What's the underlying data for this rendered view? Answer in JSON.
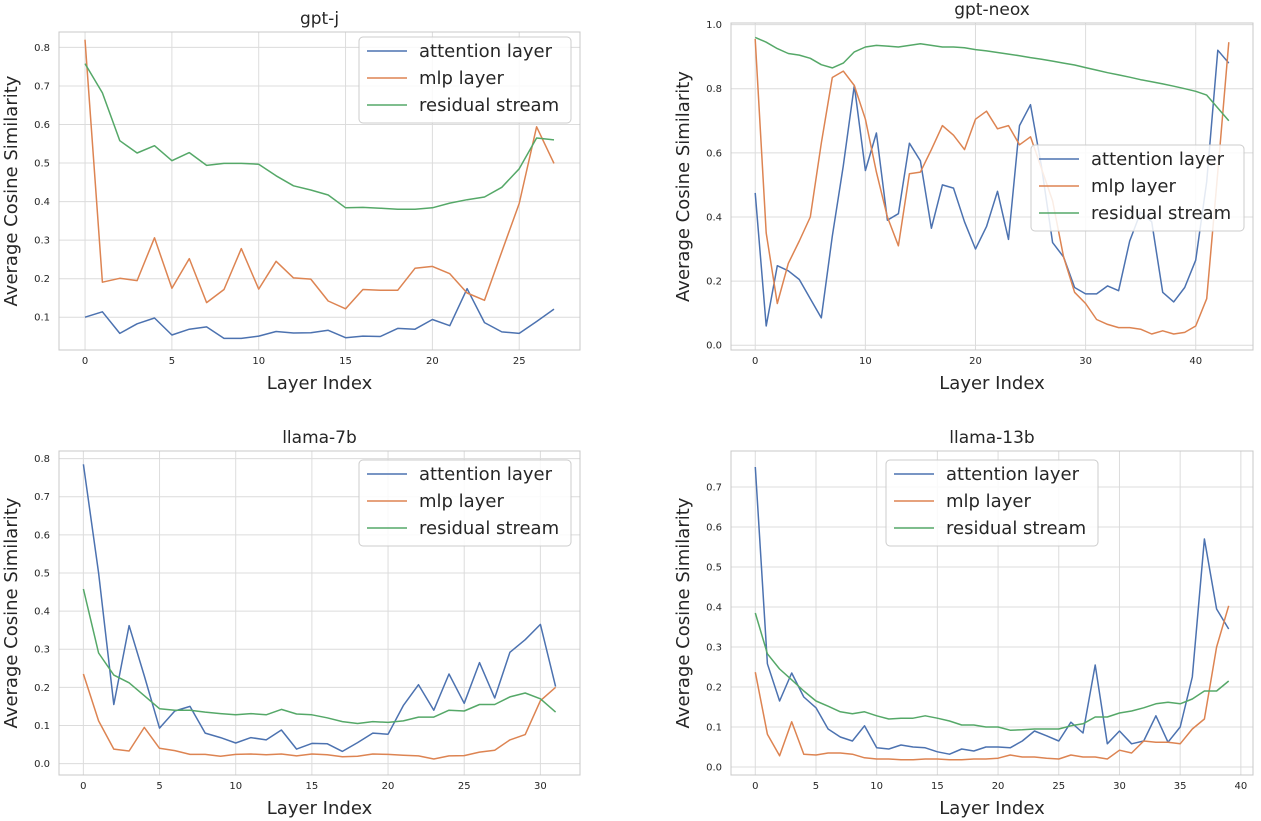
{
  "figure": {
    "legend_labels": [
      "attention layer",
      "mlp layer",
      "residual stream"
    ]
  },
  "colors": {
    "attention": "#4c72b0",
    "mlp": "#dd8452",
    "residual": "#55a868",
    "plot_bg": "#ffffff",
    "grid": "#dcdcdc",
    "spine": "#c8c8c8",
    "text": "#262626"
  },
  "chart_data": [
    {
      "type": "line",
      "title": "gpt-j",
      "xlabel": "Layer Index",
      "ylabel": "Average Cosine Similarity",
      "xlim": [
        -1.5,
        28.5
      ],
      "ylim": [
        0.015,
        0.84
      ],
      "xticks": [
        0,
        5,
        10,
        15,
        20,
        25
      ],
      "yticks": [
        0.1,
        0.2,
        0.3,
        0.4,
        0.5,
        0.6,
        0.7,
        0.8
      ],
      "legend": "top-right",
      "grid": true,
      "x": [
        0,
        1,
        2,
        3,
        4,
        5,
        6,
        7,
        8,
        9,
        10,
        11,
        12,
        13,
        14,
        15,
        16,
        17,
        18,
        19,
        20,
        21,
        22,
        23,
        24,
        25,
        26,
        27
      ],
      "series": [
        {
          "name": "attention layer",
          "values": [
            0.1,
            0.114,
            0.058,
            0.083,
            0.098,
            0.054,
            0.069,
            0.075,
            0.045,
            0.045,
            0.051,
            0.063,
            0.059,
            0.06,
            0.066,
            0.047,
            0.051,
            0.05,
            0.071,
            0.069,
            0.094,
            0.078,
            0.174,
            0.086,
            0.062,
            0.058,
            0.089,
            0.121
          ]
        },
        {
          "name": "mlp layer",
          "values": [
            0.82,
            0.191,
            0.201,
            0.195,
            0.306,
            0.175,
            0.252,
            0.138,
            0.172,
            0.278,
            0.173,
            0.245,
            0.202,
            0.199,
            0.142,
            0.122,
            0.172,
            0.17,
            0.17,
            0.227,
            0.232,
            0.213,
            0.163,
            0.144,
            0.27,
            0.395,
            0.594,
            0.499
          ]
        },
        {
          "name": "residual stream",
          "values": [
            0.758,
            0.682,
            0.558,
            0.526,
            0.545,
            0.506,
            0.527,
            0.494,
            0.499,
            0.499,
            0.497,
            0.467,
            0.441,
            0.43,
            0.417,
            0.384,
            0.385,
            0.383,
            0.38,
            0.38,
            0.384,
            0.396,
            0.405,
            0.412,
            0.437,
            0.485,
            0.565,
            0.56
          ]
        }
      ]
    },
    {
      "type": "line",
      "title": "gpt-neox",
      "xlabel": "Layer Index",
      "ylabel": "Average Cosine Similarity",
      "xlim": [
        -2.2,
        45.2
      ],
      "ylim": [
        -0.015,
        1.005
      ],
      "xticks": [
        0,
        10,
        20,
        30,
        40
      ],
      "yticks": [
        0.0,
        0.2,
        0.4,
        0.6,
        0.8,
        1.0
      ],
      "legend": "center-right",
      "grid": true,
      "x": [
        0,
        1,
        2,
        3,
        4,
        5,
        6,
        7,
        8,
        9,
        10,
        11,
        12,
        13,
        14,
        15,
        16,
        17,
        18,
        19,
        20,
        21,
        22,
        23,
        24,
        25,
        26,
        27,
        28,
        29,
        30,
        31,
        32,
        33,
        34,
        35,
        36,
        37,
        38,
        39,
        40,
        41,
        42,
        43
      ],
      "series": [
        {
          "name": "attention layer",
          "values": [
            0.475,
            0.06,
            0.248,
            0.232,
            0.205,
            0.145,
            0.085,
            0.34,
            0.56,
            0.81,
            0.545,
            0.662,
            0.39,
            0.41,
            0.63,
            0.575,
            0.365,
            0.5,
            0.49,
            0.385,
            0.3,
            0.37,
            0.48,
            0.33,
            0.685,
            0.75,
            0.555,
            0.32,
            0.275,
            0.18,
            0.16,
            0.16,
            0.185,
            0.17,
            0.325,
            0.415,
            0.385,
            0.165,
            0.135,
            0.18,
            0.265,
            0.51,
            0.92,
            0.88
          ]
        },
        {
          "name": "mlp layer",
          "values": [
            0.955,
            0.35,
            0.13,
            0.255,
            0.325,
            0.4,
            0.63,
            0.835,
            0.855,
            0.81,
            0.705,
            0.54,
            0.4,
            0.31,
            0.535,
            0.54,
            0.61,
            0.685,
            0.655,
            0.61,
            0.705,
            0.73,
            0.675,
            0.685,
            0.625,
            0.65,
            0.55,
            0.45,
            0.275,
            0.165,
            0.13,
            0.08,
            0.065,
            0.055,
            0.055,
            0.05,
            0.035,
            0.045,
            0.035,
            0.04,
            0.06,
            0.145,
            0.54,
            0.945
          ]
        },
        {
          "name": "residual stream",
          "values": [
            0.96,
            0.945,
            0.925,
            0.91,
            0.905,
            0.895,
            0.875,
            0.865,
            0.88,
            0.915,
            0.93,
            0.935,
            0.933,
            0.93,
            0.935,
            0.94,
            0.935,
            0.93,
            0.93,
            0.928,
            0.922,
            0.918,
            0.913,
            0.908,
            0.903,
            0.897,
            0.892,
            0.886,
            0.88,
            0.874,
            0.866,
            0.858,
            0.85,
            0.843,
            0.836,
            0.828,
            0.822,
            0.815,
            0.808,
            0.8,
            0.792,
            0.78,
            0.74,
            0.7
          ]
        }
      ]
    },
    {
      "type": "line",
      "title": "llama-7b",
      "xlabel": "Layer Index",
      "ylabel": "Average Cosine Similarity",
      "xlim": [
        -1.6,
        32.6
      ],
      "ylim": [
        -0.03,
        0.82
      ],
      "xticks": [
        0,
        5,
        10,
        15,
        20,
        25,
        30
      ],
      "yticks": [
        0.0,
        0.1,
        0.2,
        0.3,
        0.4,
        0.5,
        0.6,
        0.7,
        0.8
      ],
      "legend": "top-right",
      "grid": true,
      "x": [
        0,
        1,
        2,
        3,
        4,
        5,
        6,
        7,
        8,
        9,
        10,
        11,
        12,
        13,
        14,
        15,
        16,
        17,
        18,
        19,
        20,
        21,
        22,
        23,
        24,
        25,
        26,
        27,
        28,
        29,
        30,
        31
      ],
      "series": [
        {
          "name": "attention layer",
          "values": [
            0.785,
            0.5,
            0.155,
            0.362,
            0.23,
            0.093,
            0.138,
            0.15,
            0.08,
            0.068,
            0.054,
            0.068,
            0.062,
            0.088,
            0.038,
            0.053,
            0.052,
            0.032,
            0.055,
            0.08,
            0.077,
            0.152,
            0.207,
            0.14,
            0.235,
            0.158,
            0.265,
            0.172,
            0.292,
            0.325,
            0.365,
            0.202
          ]
        },
        {
          "name": "mlp layer",
          "values": [
            0.235,
            0.112,
            0.038,
            0.033,
            0.095,
            0.04,
            0.034,
            0.024,
            0.024,
            0.019,
            0.024,
            0.025,
            0.023,
            0.025,
            0.02,
            0.025,
            0.023,
            0.018,
            0.019,
            0.025,
            0.024,
            0.022,
            0.02,
            0.012,
            0.02,
            0.021,
            0.03,
            0.035,
            0.062,
            0.076,
            0.165,
            0.2
          ]
        },
        {
          "name": "residual stream",
          "values": [
            0.458,
            0.29,
            0.232,
            0.212,
            0.178,
            0.144,
            0.14,
            0.14,
            0.135,
            0.131,
            0.128,
            0.131,
            0.128,
            0.142,
            0.13,
            0.128,
            0.12,
            0.11,
            0.105,
            0.11,
            0.108,
            0.112,
            0.122,
            0.122,
            0.14,
            0.138,
            0.155,
            0.155,
            0.175,
            0.185,
            0.17,
            0.135
          ]
        }
      ]
    },
    {
      "type": "line",
      "title": "llama-13b",
      "xlabel": "Layer Index",
      "ylabel": "Average Cosine Similarity",
      "xlim": [
        -2.0,
        41.0
      ],
      "ylim": [
        -0.02,
        0.79
      ],
      "xticks": [
        0,
        5,
        10,
        15,
        20,
        25,
        30,
        35,
        40
      ],
      "yticks": [
        0.0,
        0.1,
        0.2,
        0.3,
        0.4,
        0.5,
        0.6,
        0.7
      ],
      "legend": "top-center",
      "grid": true,
      "x": [
        0,
        1,
        2,
        3,
        4,
        5,
        6,
        7,
        8,
        9,
        10,
        11,
        12,
        13,
        14,
        15,
        16,
        17,
        18,
        19,
        20,
        21,
        22,
        23,
        24,
        25,
        26,
        27,
        28,
        29,
        30,
        31,
        32,
        33,
        34,
        35,
        36,
        37,
        38,
        39
      ],
      "series": [
        {
          "name": "attention layer",
          "values": [
            0.75,
            0.258,
            0.165,
            0.235,
            0.175,
            0.148,
            0.095,
            0.075,
            0.065,
            0.103,
            0.048,
            0.045,
            0.055,
            0.05,
            0.048,
            0.038,
            0.032,
            0.045,
            0.04,
            0.05,
            0.05,
            0.048,
            0.065,
            0.09,
            0.078,
            0.065,
            0.112,
            0.085,
            0.255,
            0.058,
            0.09,
            0.058,
            0.065,
            0.128,
            0.062,
            0.1,
            0.225,
            0.57,
            0.395,
            0.345
          ]
        },
        {
          "name": "mlp layer",
          "values": [
            0.237,
            0.082,
            0.028,
            0.113,
            0.032,
            0.03,
            0.035,
            0.035,
            0.032,
            0.023,
            0.02,
            0.02,
            0.018,
            0.018,
            0.02,
            0.02,
            0.018,
            0.018,
            0.02,
            0.02,
            0.022,
            0.03,
            0.025,
            0.025,
            0.022,
            0.02,
            0.03,
            0.025,
            0.025,
            0.02,
            0.042,
            0.035,
            0.065,
            0.062,
            0.062,
            0.058,
            0.095,
            0.12,
            0.3,
            0.403
          ]
        },
        {
          "name": "residual stream",
          "values": [
            0.385,
            0.283,
            0.245,
            0.218,
            0.19,
            0.165,
            0.152,
            0.138,
            0.133,
            0.138,
            0.128,
            0.12,
            0.122,
            0.122,
            0.128,
            0.122,
            0.115,
            0.105,
            0.105,
            0.1,
            0.1,
            0.092,
            0.093,
            0.095,
            0.095,
            0.095,
            0.103,
            0.108,
            0.125,
            0.125,
            0.135,
            0.14,
            0.148,
            0.158,
            0.162,
            0.158,
            0.17,
            0.19,
            0.19,
            0.215
          ]
        }
      ]
    }
  ]
}
